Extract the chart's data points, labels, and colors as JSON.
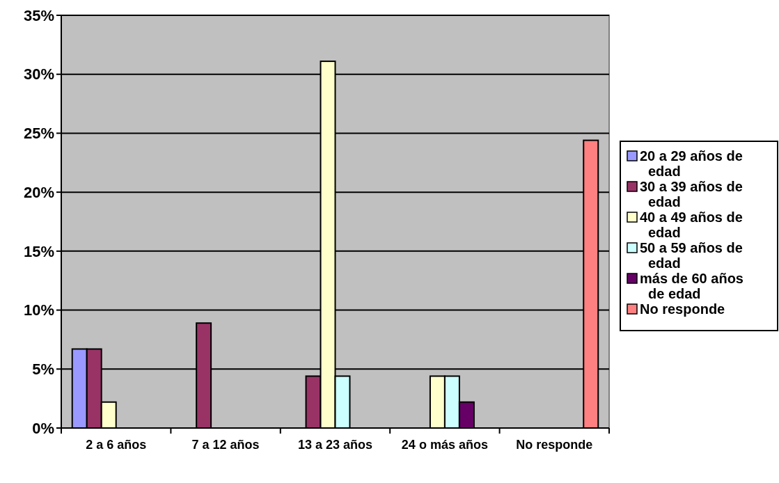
{
  "chart_data": {
    "type": "bar",
    "categories": [
      "2 a 6 años",
      "7 a 12 años",
      "13 a 23 años",
      "24 o más años",
      "No responde"
    ],
    "series": [
      {
        "name": "20 a 29 años de edad",
        "color": "#9999ff",
        "values": [
          6.7,
          null,
          null,
          null,
          null
        ]
      },
      {
        "name": "30 a 39 años de edad",
        "color": "#993366",
        "values": [
          6.7,
          8.9,
          4.4,
          null,
          null
        ]
      },
      {
        "name": "40 a 49 años de edad",
        "color": "#ffffcc",
        "values": [
          2.2,
          null,
          31.1,
          4.4,
          null
        ]
      },
      {
        "name": "50 a 59 años de edad",
        "color": "#ccffff",
        "values": [
          null,
          null,
          4.4,
          4.4,
          null
        ]
      },
      {
        "name": "más de 60 años de edad",
        "color": "#660066",
        "values": [
          null,
          null,
          null,
          2.2,
          null
        ]
      },
      {
        "name": "No responde",
        "color": "#ff8080",
        "values": [
          null,
          null,
          null,
          null,
          24.4
        ]
      }
    ],
    "ylim": [
      0,
      35
    ],
    "yticks": [
      {
        "value": 0,
        "label": "0%"
      },
      {
        "value": 5,
        "label": "5%"
      },
      {
        "value": 10,
        "label": "10%"
      },
      {
        "value": 15,
        "label": "15%"
      },
      {
        "value": 20,
        "label": "20%"
      },
      {
        "value": 25,
        "label": "25%"
      },
      {
        "value": 30,
        "label": "30%"
      },
      {
        "value": 35,
        "label": "35%"
      }
    ],
    "grid": "y",
    "legend": "right"
  }
}
